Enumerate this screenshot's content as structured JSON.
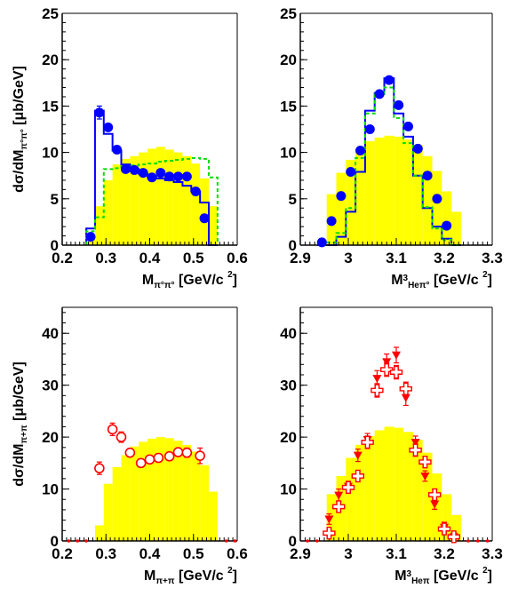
{
  "chart_data": [
    {
      "type": "bar",
      "panel": "top-left",
      "xlim": [
        0.2,
        0.6
      ],
      "ylim": [
        0,
        25
      ],
      "xticks": [
        "0.2",
        "0.3",
        "0.4",
        "0.5",
        "0.6"
      ],
      "yticks": [
        "0",
        "5",
        "10",
        "15",
        "20",
        "25"
      ],
      "xlabel": {
        "main": "M",
        "sub": "π°π°",
        "unit": "[GeV/c",
        "sup": "2",
        "close": "]"
      },
      "ylabel": {
        "main": "dσ/dM",
        "sub": "π°π°",
        "unit": "[μb/GeV]"
      },
      "bin_edges": [
        0.255,
        0.275,
        0.295,
        0.315,
        0.335,
        0.355,
        0.375,
        0.395,
        0.415,
        0.435,
        0.455,
        0.475,
        0.495,
        0.515,
        0.535,
        0.555
      ],
      "series": [
        {
          "kind": "filled-histogram",
          "color": "#ffff00",
          "values": [
            0.8,
            4.2,
            7.0,
            8.7,
            9.3,
            9.6,
            10.0,
            10.4,
            10.6,
            10.3,
            10.0,
            9.6,
            8.8,
            7.2,
            4.2
          ]
        },
        {
          "kind": "step-line",
          "color": "#0000ff",
          "values": [
            1.8,
            14.5,
            12.0,
            10.2,
            8.7,
            8.2,
            7.7,
            7.4,
            7.2,
            7.0,
            6.8,
            6.4,
            5.8,
            4.6,
            0.0
          ]
        },
        {
          "kind": "dashed-step",
          "color": "#00dd00",
          "values": [
            1.5,
            3.0,
            8.2,
            8.3,
            8.5,
            8.6,
            8.7,
            8.8,
            9.0,
            9.1,
            9.2,
            9.3,
            9.4,
            9.3,
            7.3
          ]
        },
        {
          "kind": "points",
          "marker": "filled-circle",
          "color": "#0000ff",
          "x": [
            0.265,
            0.285,
            0.305,
            0.325,
            0.345,
            0.365,
            0.385,
            0.405,
            0.425,
            0.445,
            0.465,
            0.485,
            0.505,
            0.525
          ],
          "y": [
            0.9,
            14.3,
            12.7,
            10.3,
            8.2,
            8.1,
            7.8,
            7.3,
            7.8,
            7.4,
            7.4,
            7.4,
            5.8,
            2.9
          ],
          "err": [
            0,
            0.7,
            0,
            0,
            0,
            0,
            0,
            0,
            0,
            0,
            0,
            0,
            0,
            0
          ]
        }
      ]
    },
    {
      "type": "bar",
      "panel": "top-right",
      "xlim": [
        2.9,
        3.3
      ],
      "ylim": [
        0,
        25
      ],
      "xticks": [
        "2.9",
        "3",
        "3.1",
        "3.2",
        "3.3"
      ],
      "yticks": [
        "0",
        "5",
        "10",
        "15",
        "20",
        "25"
      ],
      "xlabel": {
        "main": "M",
        "presup": "3",
        "sub": "Heπ°",
        "unit": "[GeV/c",
        "sup": "2",
        "close": "]"
      },
      "bin_edges": [
        2.935,
        2.955,
        2.975,
        2.995,
        3.015,
        3.035,
        3.055,
        3.075,
        3.095,
        3.115,
        3.135,
        3.155,
        3.175,
        3.195,
        3.215,
        3.235
      ],
      "series": [
        {
          "kind": "filled-histogram",
          "color": "#ffff00",
          "values": [
            0.0,
            5.5,
            7.8,
            9.2,
            10.3,
            11.2,
            11.6,
            11.8,
            11.7,
            11.4,
            10.8,
            9.6,
            8.0,
            5.8,
            3.6
          ]
        },
        {
          "kind": "step-line",
          "color": "#0000ff",
          "values": [
            0.0,
            0.0,
            0.9,
            3.6,
            7.9,
            14.5,
            16.4,
            18.0,
            14.2,
            11.7,
            7.5,
            4.0,
            2.0,
            0.7,
            0.0
          ]
        },
        {
          "kind": "dashed-step",
          "color": "#00dd00",
          "values": [
            0.0,
            0.3,
            1.3,
            4.0,
            9.4,
            14.2,
            16.3,
            17.0,
            13.7,
            11.0,
            7.5,
            4.1,
            1.8,
            0.6,
            0.0
          ]
        },
        {
          "kind": "points",
          "marker": "filled-circle",
          "color": "#0000ff",
          "x": [
            2.945,
            2.965,
            2.985,
            3.005,
            3.025,
            3.045,
            3.065,
            3.085,
            3.105,
            3.125,
            3.145,
            3.165,
            3.185,
            3.205
          ],
          "y": [
            0.3,
            2.6,
            5.3,
            7.9,
            10.2,
            12.5,
            16.3,
            17.8,
            15.1,
            12.8,
            10.4,
            7.5,
            5.0,
            2.1
          ],
          "err": [
            0,
            0,
            0,
            0,
            0,
            0,
            0,
            0,
            0,
            0,
            0,
            0,
            0,
            0
          ]
        }
      ]
    },
    {
      "type": "bar",
      "panel": "bottom-left",
      "xlim": [
        0.2,
        0.6
      ],
      "ylim": [
        0,
        45
      ],
      "xticks": [
        "0.2",
        "0.3",
        "0.4",
        "0.5",
        "0.6"
      ],
      "yticks": [
        "0",
        "10",
        "20",
        "30",
        "40"
      ],
      "xlabel": {
        "main": "M",
        "sub": "π+π",
        "unit": "[GeV/c",
        "sup": "2",
        "close": "]"
      },
      "ylabel": {
        "main": "dσ/dM",
        "sub": "π+π",
        "unit": "[μb/GeV]"
      },
      "bin_edges": [
        0.275,
        0.295,
        0.315,
        0.335,
        0.355,
        0.375,
        0.395,
        0.415,
        0.435,
        0.455,
        0.475,
        0.495,
        0.515,
        0.535,
        0.555
      ],
      "series": [
        {
          "kind": "filled-histogram",
          "color": "#ffff00",
          "values": [
            3.0,
            11.0,
            14.2,
            16.5,
            18.2,
            19.1,
            19.7,
            20.0,
            19.8,
            19.3,
            18.5,
            17.2,
            14.6,
            9.5
          ]
        },
        {
          "kind": "points",
          "marker": "open-circle",
          "color": "#ff0000",
          "x": [
            0.285,
            0.315,
            0.335,
            0.355,
            0.38,
            0.4,
            0.42,
            0.445,
            0.465,
            0.485,
            0.515
          ],
          "y": [
            14.0,
            21.5,
            20.0,
            17.0,
            15.0,
            15.7,
            16.0,
            16.3,
            17.1,
            17.0,
            16.4
          ],
          "err": [
            1.2,
            1.2,
            1.0,
            0.8,
            0.8,
            0.8,
            0.8,
            0.8,
            0.8,
            0.9,
            1.5
          ]
        },
        {
          "kind": "points",
          "marker": "dot",
          "color": "#ff0000",
          "x": [
            0.215,
            0.235,
            0.255,
            0.575,
            0.595
          ],
          "y": [
            0,
            0,
            0,
            0,
            0
          ],
          "err": [
            0,
            0,
            0,
            0,
            0
          ]
        }
      ]
    },
    {
      "type": "bar",
      "panel": "bottom-right",
      "xlim": [
        2.9,
        3.3
      ],
      "ylim": [
        0,
        45
      ],
      "xticks": [
        "2.9",
        "3",
        "3.1",
        "3.2",
        "3.3"
      ],
      "yticks": [
        "0",
        "10",
        "20",
        "30",
        "40"
      ],
      "xlabel": {
        "main": "M",
        "presup": "3",
        "sub": "Heπ",
        "unit": "[GeV/c",
        "sup": "2",
        "close": "]"
      },
      "bin_edges": [
        2.955,
        2.975,
        2.995,
        3.015,
        3.035,
        3.055,
        3.075,
        3.095,
        3.115,
        3.135,
        3.155,
        3.175,
        3.195,
        3.215,
        3.235
      ],
      "series": [
        {
          "kind": "filled-histogram",
          "color": "#ffff00",
          "values": [
            9.0,
            12.5,
            16.0,
            18.5,
            20.2,
            21.3,
            22.0,
            21.8,
            21.0,
            19.5,
            17.0,
            13.0,
            9.0,
            5.0
          ]
        },
        {
          "kind": "points",
          "marker": "filled-down-triangle",
          "color": "#ff0000",
          "x": [
            2.96,
            2.98,
            3.0,
            3.02,
            3.04,
            3.06,
            3.08,
            3.1,
            3.12,
            3.14,
            3.16,
            3.18,
            3.2,
            3.22
          ],
          "y": [
            4.2,
            8.8,
            10.5,
            16.5,
            19.5,
            31.3,
            34.5,
            35.8,
            27.6,
            19.0,
            12.5,
            7.1,
            2.6,
            0.8
          ],
          "err": [
            1.0,
            1.2,
            1.0,
            1.2,
            1.2,
            1.5,
            1.5,
            1.5,
            1.5,
            1.2,
            1.0,
            1.0,
            1.0,
            0.8
          ]
        },
        {
          "kind": "points",
          "marker": "open-cross",
          "color": "#ff0000",
          "x": [
            2.96,
            2.98,
            3.0,
            3.02,
            3.04,
            3.06,
            3.08,
            3.1,
            3.12,
            3.14,
            3.16,
            3.18,
            3.2,
            3.22
          ],
          "y": [
            1.5,
            6.6,
            10.3,
            12.5,
            19.0,
            29.0,
            33.0,
            32.5,
            29.3,
            17.5,
            15.2,
            8.9,
            2.3,
            0.8
          ],
          "err": [
            0.7,
            1.0,
            1.0,
            1.0,
            1.2,
            1.3,
            1.3,
            1.3,
            1.3,
            1.2,
            1.0,
            1.0,
            0.8,
            0.7
          ]
        },
        {
          "kind": "points",
          "marker": "dot",
          "color": "#ff0000",
          "x": [
            2.915,
            2.935,
            3.25,
            3.27,
            3.29
          ],
          "y": [
            0,
            0,
            0,
            0,
            0
          ],
          "err": [
            0,
            0,
            0,
            0,
            0
          ]
        }
      ]
    }
  ]
}
